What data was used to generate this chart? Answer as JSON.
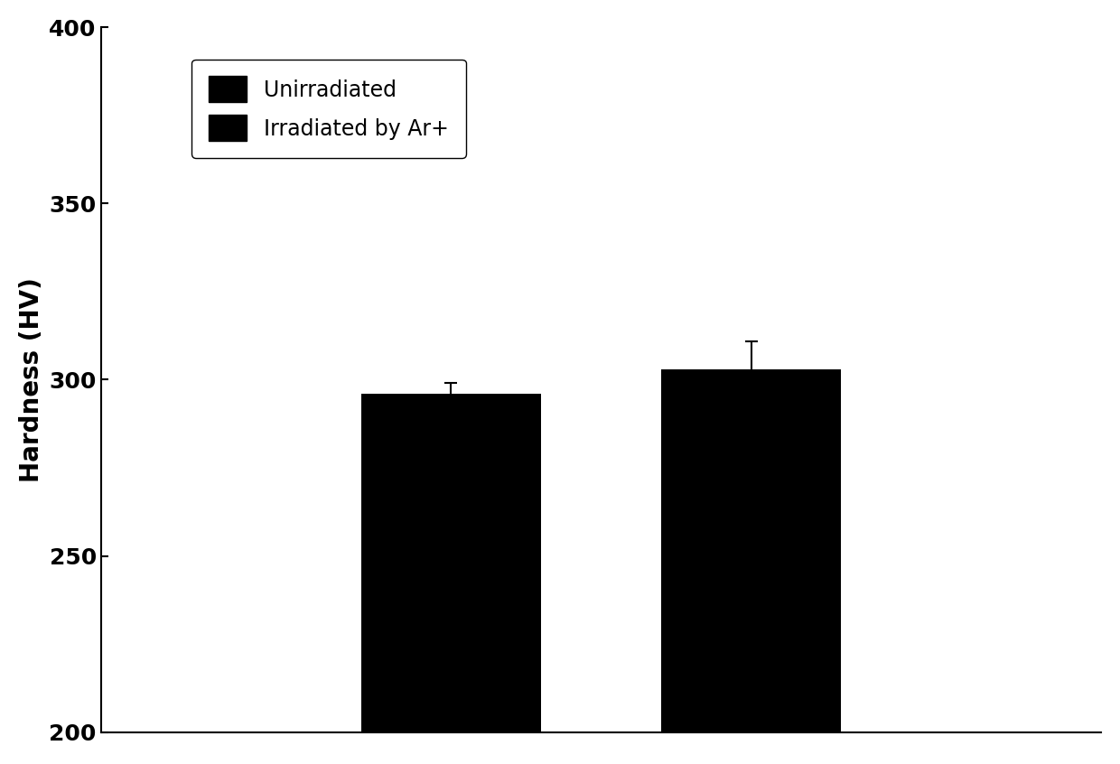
{
  "categories": [
    "Unirradiated",
    "Irradiated by Ar+"
  ],
  "values": [
    296,
    303
  ],
  "errors": [
    3,
    8
  ],
  "bar_color": "#000000",
  "bar_width": 0.18,
  "bar_positions": [
    0.35,
    0.65
  ],
  "ylabel": "Hardness (HV)",
  "ylim": [
    200,
    400
  ],
  "yticks": [
    200,
    250,
    300,
    350,
    400
  ],
  "xlim": [
    0,
    1
  ],
  "legend_labels": [
    "Unirradiated",
    "Irradiated by Ar+"
  ],
  "legend_colors": [
    "#000000",
    "#000000"
  ],
  "background_color": "#ffffff",
  "axis_color": "#000000",
  "font_size": 20,
  "legend_font_size": 17,
  "tick_font_size": 18,
  "capsize": 5,
  "elinewidth": 1.5,
  "ecolor": "#000000"
}
